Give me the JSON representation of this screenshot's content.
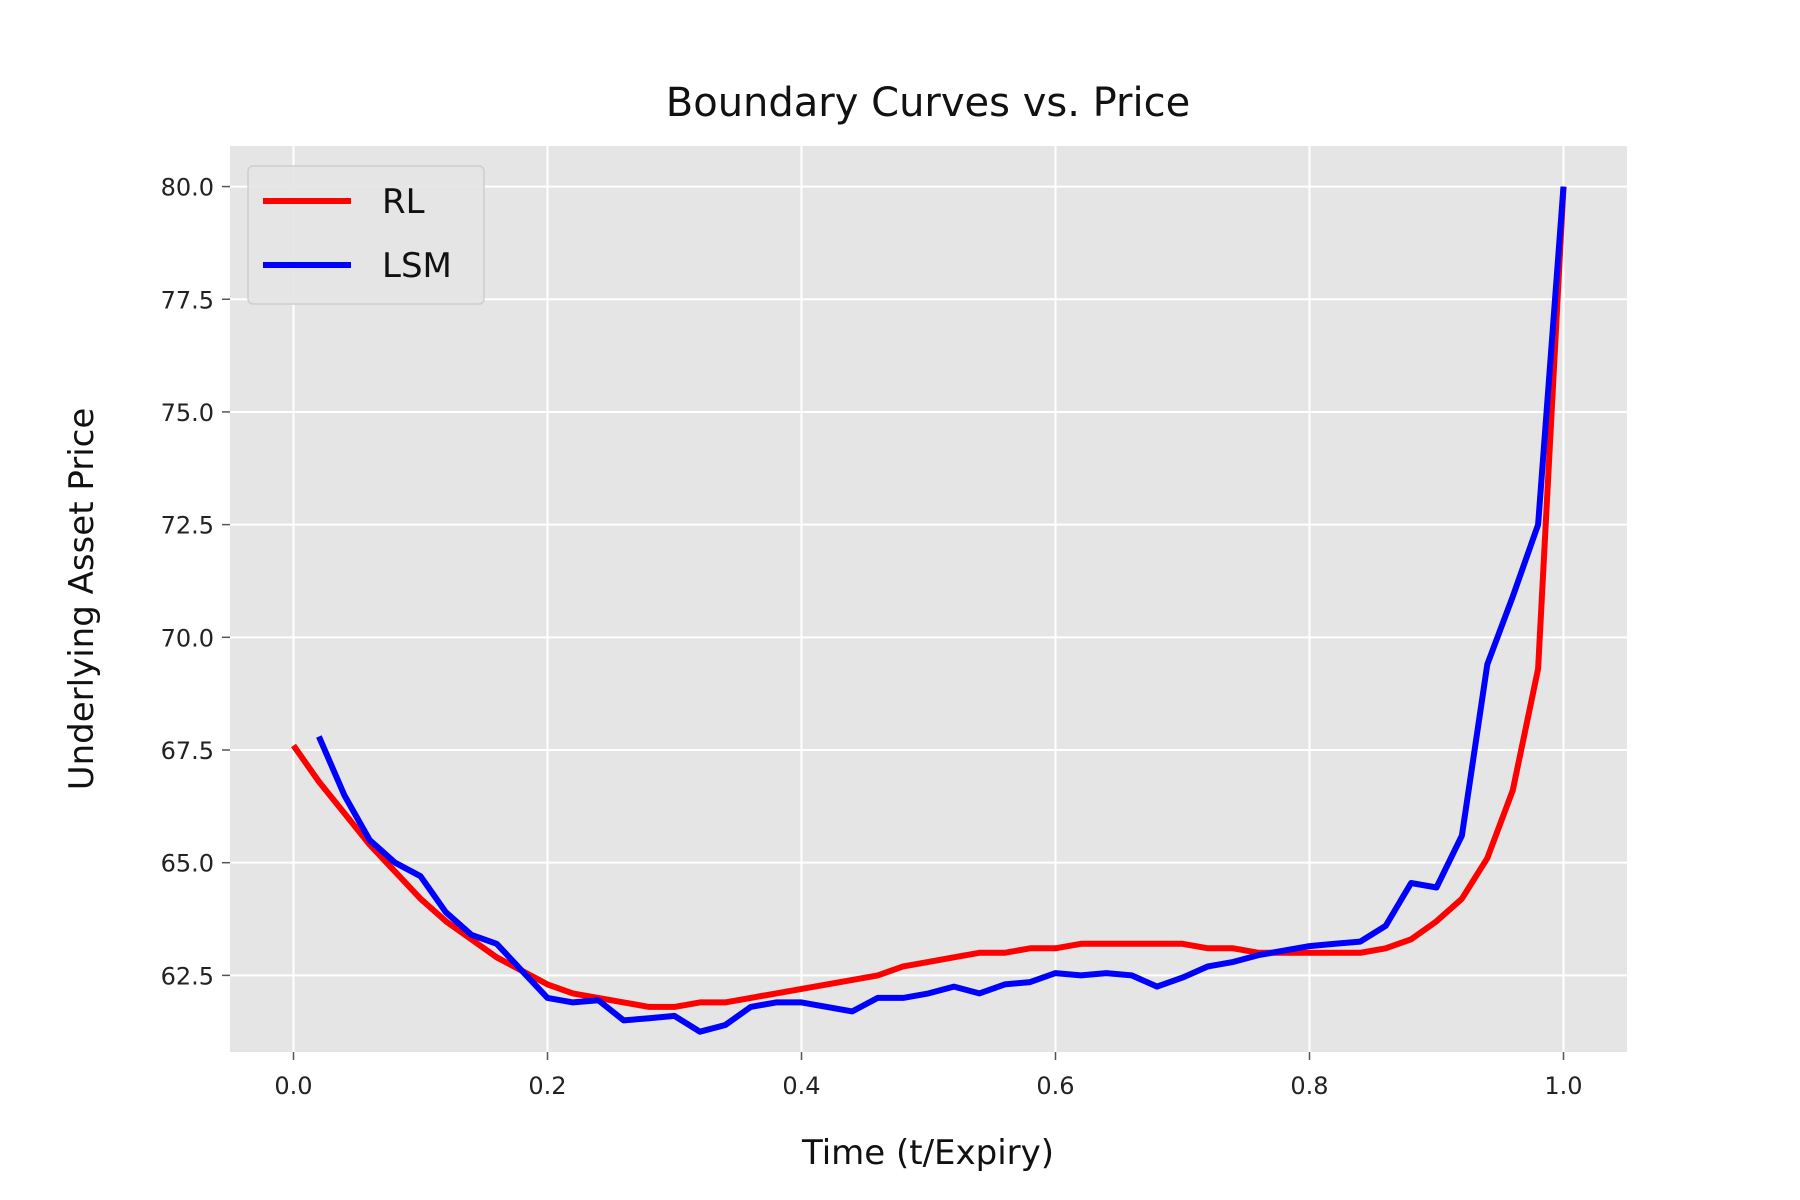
{
  "chart_data": {
    "type": "line",
    "title": "Boundary Curves vs. Price",
    "xlabel": "Time (t/Expiry)",
    "ylabel": "Underlying Asset Price",
    "xlim": [
      -0.05,
      1.05
    ],
    "ylim": [
      60.8,
      80.9
    ],
    "xticks": [
      "0.0",
      "0.2",
      "0.4",
      "0.6",
      "0.8",
      "1.0"
    ],
    "yticks": [
      "62.5",
      "65.0",
      "67.5",
      "70.0",
      "72.5",
      "75.0",
      "77.5",
      "80.0"
    ],
    "grid": true,
    "legend_position": "top-left",
    "background": "#e5e5e5",
    "series": [
      {
        "name": "RL",
        "color": "#ff0000",
        "x": [
          0.0,
          0.02,
          0.04,
          0.06,
          0.08,
          0.1,
          0.12,
          0.14,
          0.16,
          0.18,
          0.2,
          0.22,
          0.24,
          0.26,
          0.28,
          0.3,
          0.32,
          0.34,
          0.36,
          0.38,
          0.4,
          0.42,
          0.44,
          0.46,
          0.48,
          0.5,
          0.52,
          0.54,
          0.56,
          0.58,
          0.6,
          0.62,
          0.64,
          0.66,
          0.68,
          0.7,
          0.72,
          0.74,
          0.76,
          0.78,
          0.8,
          0.82,
          0.84,
          0.86,
          0.88,
          0.9,
          0.92,
          0.94,
          0.96,
          0.98,
          1.0
        ],
        "y": [
          67.6,
          66.8,
          66.1,
          65.4,
          64.8,
          64.2,
          63.7,
          63.3,
          62.9,
          62.6,
          62.3,
          62.1,
          62.0,
          61.9,
          61.8,
          61.8,
          61.9,
          61.9,
          62.0,
          62.1,
          62.2,
          62.3,
          62.4,
          62.5,
          62.7,
          62.8,
          62.9,
          63.0,
          63.0,
          63.1,
          63.1,
          63.2,
          63.2,
          63.2,
          63.2,
          63.2,
          63.1,
          63.1,
          63.0,
          63.0,
          63.0,
          63.0,
          63.0,
          63.1,
          63.3,
          63.7,
          64.2,
          65.1,
          66.6,
          69.3,
          80.0
        ]
      },
      {
        "name": "LSM",
        "color": "#0000ff",
        "x": [
          0.02,
          0.04,
          0.06,
          0.08,
          0.1,
          0.12,
          0.14,
          0.16,
          0.18,
          0.2,
          0.22,
          0.24,
          0.26,
          0.28,
          0.3,
          0.32,
          0.34,
          0.36,
          0.38,
          0.4,
          0.42,
          0.44,
          0.46,
          0.48,
          0.5,
          0.52,
          0.54,
          0.56,
          0.58,
          0.6,
          0.62,
          0.64,
          0.66,
          0.68,
          0.7,
          0.72,
          0.74,
          0.76,
          0.78,
          0.8,
          0.82,
          0.84,
          0.86,
          0.88,
          0.9,
          0.92,
          0.94,
          0.96,
          0.98,
          1.0
        ],
        "y": [
          67.8,
          66.5,
          65.5,
          65.0,
          64.7,
          63.9,
          63.4,
          63.2,
          62.6,
          62.0,
          61.9,
          61.95,
          61.5,
          61.55,
          61.6,
          61.25,
          61.4,
          61.8,
          61.9,
          61.9,
          61.8,
          61.7,
          62.0,
          62.0,
          62.1,
          62.25,
          62.1,
          62.3,
          62.35,
          62.55,
          62.5,
          62.55,
          62.5,
          62.25,
          62.45,
          62.7,
          62.8,
          62.95,
          63.05,
          63.15,
          63.2,
          63.25,
          63.6,
          64.55,
          64.45,
          65.6,
          69.4,
          70.9,
          72.5,
          80.0
        ]
      }
    ]
  }
}
